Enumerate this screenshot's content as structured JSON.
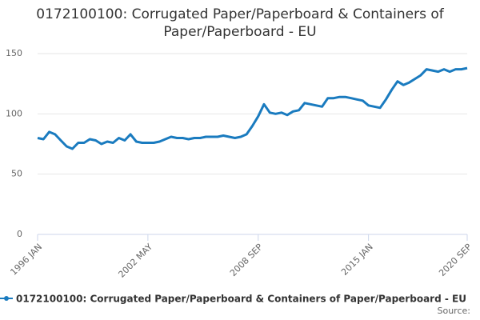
{
  "chart_data": {
    "type": "line",
    "title": "0172100100: Corrugated Paper/Paperboard & Containers of Paper/Paperboard - EU",
    "source": "Source:",
    "categories": [
      "1996 JAN",
      null,
      null,
      null,
      null,
      null,
      null,
      null,
      null,
      null,
      null,
      null,
      null,
      null,
      null,
      null,
      null,
      null,
      null,
      "2002 MAY",
      null,
      null,
      null,
      null,
      null,
      null,
      null,
      null,
      null,
      null,
      null,
      null,
      null,
      null,
      null,
      null,
      null,
      null,
      "2008 SEP",
      null,
      null,
      null,
      null,
      null,
      null,
      null,
      null,
      null,
      null,
      null,
      null,
      null,
      null,
      null,
      null,
      null,
      null,
      "2015 JAN",
      null,
      null,
      null,
      null,
      null,
      null,
      null,
      null,
      null,
      null,
      null,
      null,
      null,
      null,
      null,
      null,
      "2020 SEP"
    ],
    "series": [
      {
        "name": "0172100100: Corrugated Paper/Paperboard & Containers of Paper/Paperboard - EU",
        "color": "#1a7bbf",
        "values": [
          80,
          79,
          85,
          83,
          78,
          73,
          71,
          76,
          76,
          79,
          78,
          75,
          77,
          76,
          80,
          78,
          83,
          77,
          76,
          76,
          76,
          77,
          79,
          81,
          80,
          80,
          79,
          80,
          80,
          81,
          81,
          81,
          82,
          81,
          80,
          81,
          83,
          90,
          98,
          108,
          101,
          100,
          101,
          99,
          102,
          103,
          109,
          108,
          107,
          106,
          113,
          113,
          114,
          114,
          113,
          112,
          111,
          107,
          106,
          105,
          112,
          120,
          127,
          124,
          126,
          129,
          132,
          137,
          136,
          135,
          137,
          135,
          137,
          137,
          138
        ]
      }
    ],
    "ylim": [
      0,
      150
    ],
    "yticks": [
      0,
      50,
      100,
      150
    ],
    "grid": true
  }
}
